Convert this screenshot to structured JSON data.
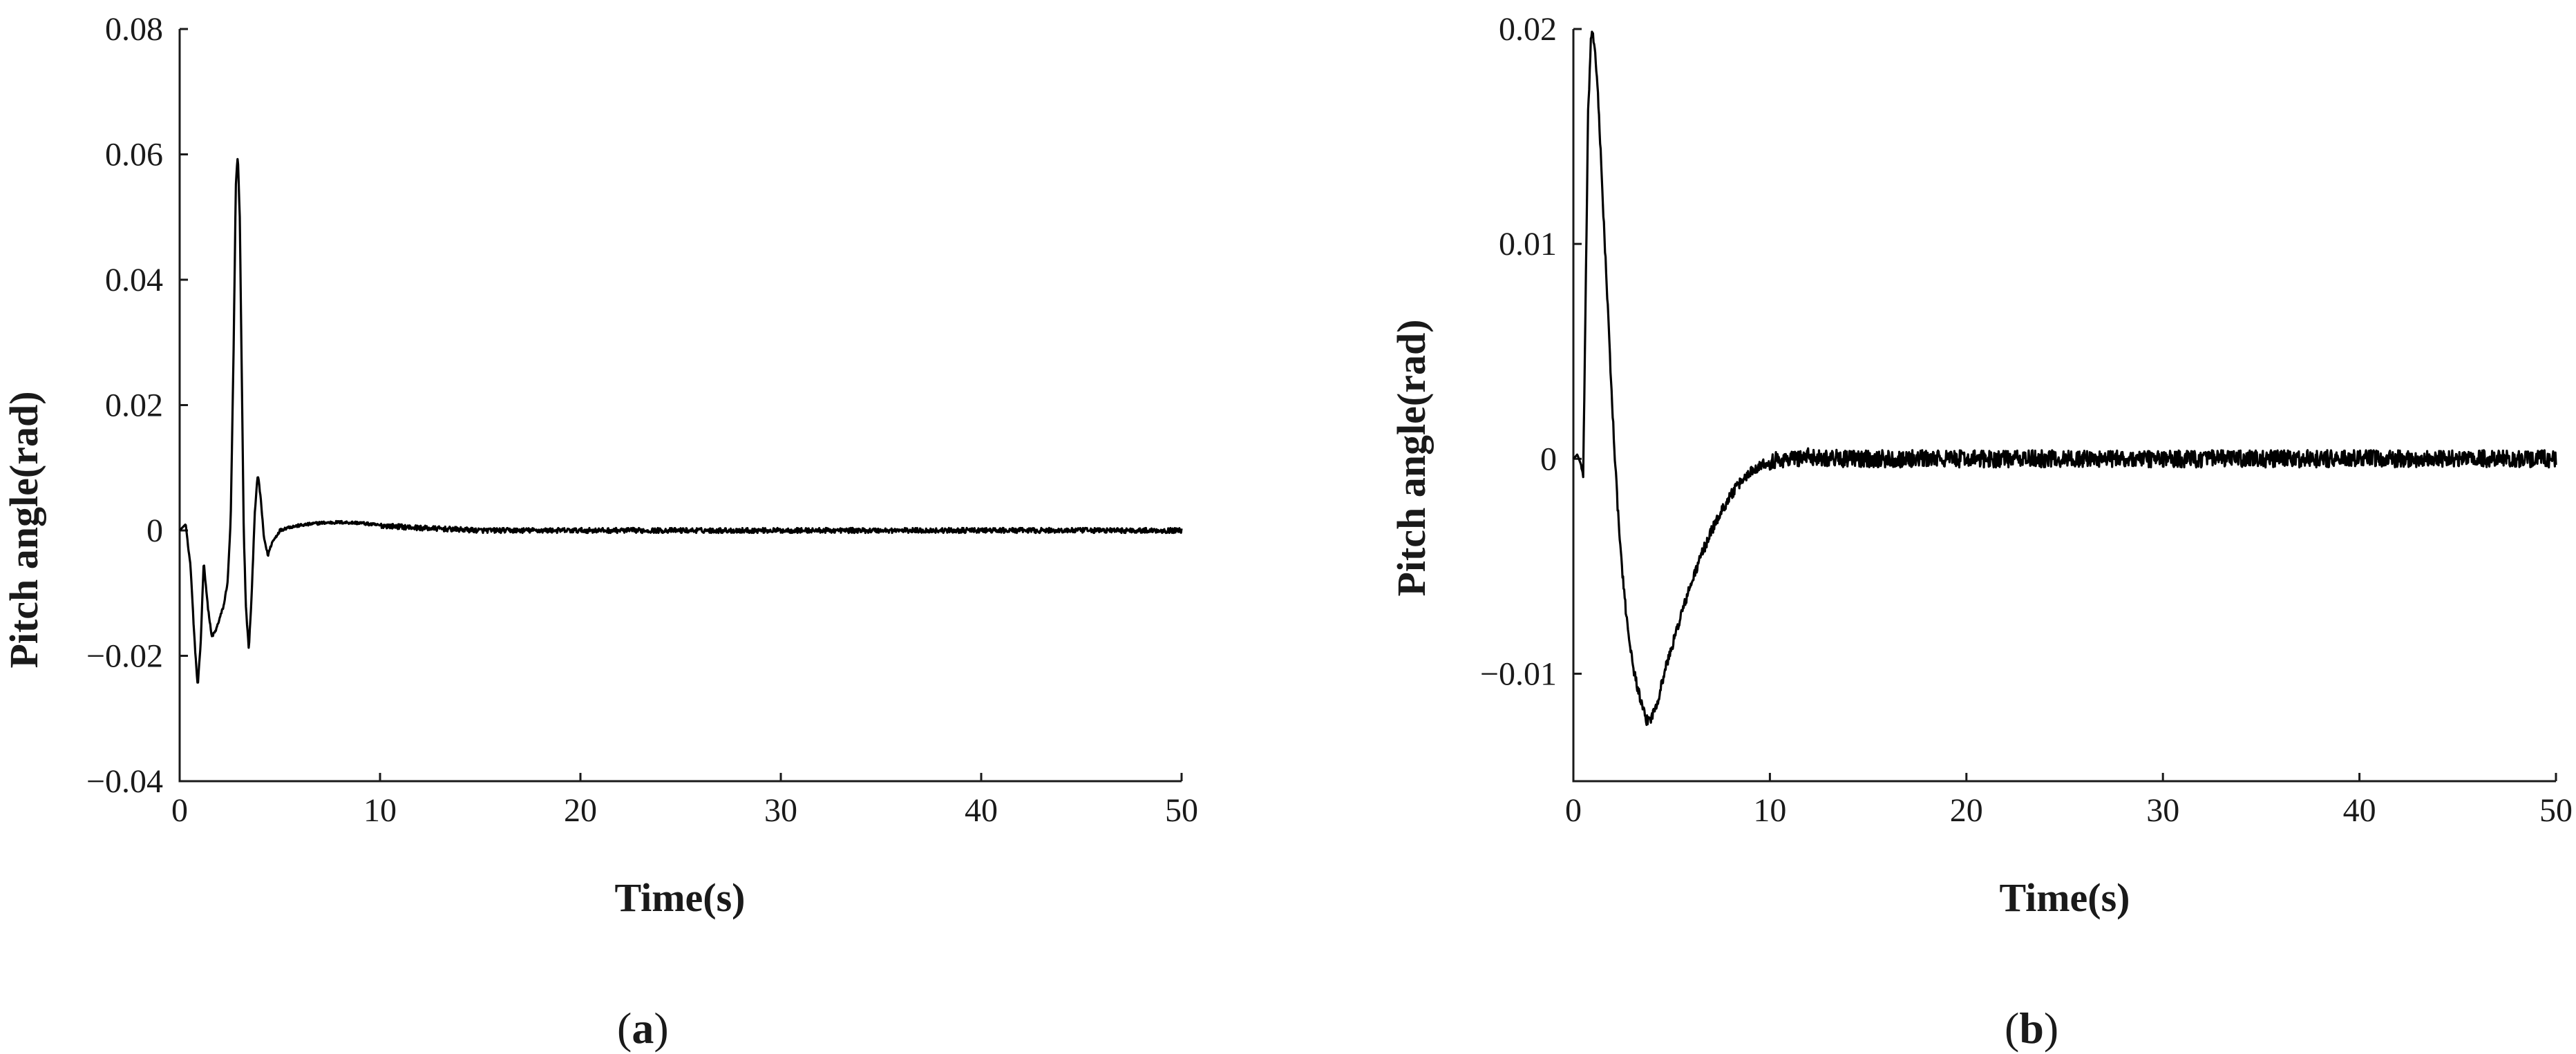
{
  "chart_data": [
    {
      "type": "line",
      "panel_label": "a",
      "xlabel": "Time(s)",
      "ylabel": "Pitch angle(rad)",
      "xlim": [
        0,
        50
      ],
      "ylim": [
        -0.04,
        0.08
      ],
      "xticks": [
        0,
        10,
        20,
        30,
        40,
        50
      ],
      "yticks": [
        -0.04,
        -0.02,
        0,
        0.02,
        0.04,
        0.06,
        0.08
      ],
      "xtick_labels": [
        "0",
        "10",
        "20",
        "30",
        "40",
        "50"
      ],
      "ytick_labels": [
        "−0.04",
        "−0.02",
        "0",
        "0.02",
        "0.04",
        "0.06",
        "0.08"
      ],
      "grid": false,
      "series": [
        {
          "noise_amplitude": 0.0004,
          "x": [
            0,
            0.3,
            0.55,
            0.75,
            0.9,
            1.05,
            1.2,
            1.4,
            1.6,
            1.8,
            2.0,
            2.2,
            2.4,
            2.55,
            2.7,
            2.8,
            2.9,
            3.0,
            3.1,
            3.2,
            3.3,
            3.45,
            3.6,
            3.75,
            3.9,
            4.05,
            4.2,
            4.4,
            4.6,
            4.8,
            5.0,
            5.4,
            6.0,
            7.0,
            8.0,
            9.0,
            10.0,
            12.0,
            15.0,
            20.0,
            25.0,
            30.0,
            35.0,
            40.0,
            45.0,
            50.0
          ],
          "y": [
            0,
            0.001,
            -0.006,
            -0.018,
            -0.025,
            -0.018,
            -0.005,
            -0.012,
            -0.017,
            -0.016,
            -0.014,
            -0.012,
            -0.008,
            0.002,
            0.03,
            0.055,
            0.06,
            0.05,
            0.025,
            0.0,
            -0.012,
            -0.019,
            -0.01,
            0.003,
            0.009,
            0.005,
            -0.001,
            -0.004,
            -0.002,
            -0.001,
            0.0,
            0.0005,
            0.0008,
            0.0012,
            0.0013,
            0.0012,
            0.0008,
            0.0004,
            0.0,
            0.0,
            0.0,
            0.0,
            0.0,
            0.0,
            0.0,
            0.0
          ]
        }
      ]
    },
    {
      "type": "line",
      "panel_label": "b",
      "xlabel": "Time(s)",
      "ylabel": "Pitch angle(rad)",
      "xlim": [
        0,
        50
      ],
      "ylim": [
        -0.015,
        0.02
      ],
      "xticks": [
        0,
        10,
        20,
        30,
        40,
        50
      ],
      "yticks": [
        -0.01,
        0,
        0.01,
        0.02
      ],
      "xtick_labels": [
        "0",
        "10",
        "20",
        "30",
        "40",
        "50"
      ],
      "ytick_labels": [
        "−0.01",
        "0",
        "0.01",
        "0.02"
      ],
      "grid": false,
      "series": [
        {
          "noise_amplitude": 0.0004,
          "x": [
            0,
            0.2,
            0.4,
            0.5,
            0.6,
            0.75,
            0.9,
            1.05,
            1.2,
            1.4,
            1.6,
            1.8,
            2.0,
            2.3,
            2.6,
            3.0,
            3.4,
            3.7,
            4.0,
            4.3,
            4.7,
            5.0,
            5.5,
            6.0,
            6.5,
            7.0,
            7.5,
            8.0,
            8.5,
            9.0,
            9.5,
            10.0,
            11.0,
            12.0,
            14.0,
            20.0,
            30.0,
            40.0,
            50.0
          ],
          "y": [
            0,
            0.0002,
            -0.0003,
            -0.0008,
            0.006,
            0.016,
            0.0197,
            0.0195,
            0.0178,
            0.014,
            0.01,
            0.006,
            0.002,
            -0.003,
            -0.0065,
            -0.0095,
            -0.0112,
            -0.0122,
            -0.012,
            -0.0112,
            -0.0097,
            -0.0088,
            -0.0072,
            -0.0058,
            -0.0045,
            -0.0034,
            -0.0025,
            -0.0017,
            -0.0011,
            -0.0006,
            -0.0003,
            -0.0001,
            0.0,
            0.0001,
            0.0,
            0.0,
            0.0,
            0.0,
            0.0
          ]
        }
      ]
    }
  ],
  "captions": [
    {
      "open": "(",
      "label": "a",
      "close": ")"
    },
    {
      "open": "(",
      "label": "b",
      "close": ")"
    }
  ]
}
